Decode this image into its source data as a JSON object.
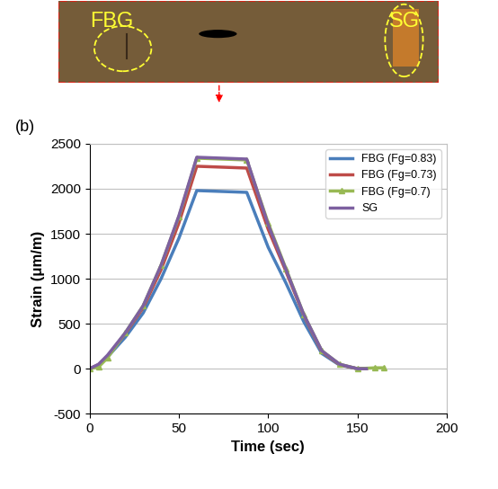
{
  "photo": {
    "labels": [
      "FBG",
      "SG"
    ]
  },
  "chart_data": {
    "type": "line",
    "panel_label": "(b)",
    "x_label": "Time (sec)",
    "y_label": "Strain (μm/m)",
    "xlim": [
      0,
      200
    ],
    "xticks": [
      0,
      50,
      100,
      150,
      200
    ],
    "ylim": [
      -500,
      2500
    ],
    "yticks": [
      -500,
      0,
      500,
      1000,
      1500,
      2000,
      2500
    ],
    "grid": true,
    "legend": "upper right",
    "series": [
      {
        "name": "FBG (Fg=0.83)",
        "color": "#4a7ebb",
        "line_style": "solid",
        "x": [
          0,
          5,
          10,
          20,
          30,
          40,
          50,
          60,
          88,
          100,
          110,
          120,
          130,
          140,
          150,
          155
        ],
        "values": [
          0,
          40,
          130,
          350,
          620,
          1000,
          1450,
          1980,
          1960,
          1350,
          950,
          520,
          170,
          40,
          0,
          0
        ]
      },
      {
        "name": "FBG (Fg=0.73)",
        "color": "#be4b48",
        "line_style": "solid",
        "x": [
          0,
          5,
          10,
          20,
          30,
          40,
          50,
          60,
          88,
          100,
          110,
          120,
          130,
          140,
          150,
          155
        ],
        "values": [
          0,
          45,
          140,
          390,
          680,
          1100,
          1620,
          2250,
          2230,
          1550,
          1080,
          590,
          190,
          45,
          0,
          0
        ]
      },
      {
        "name": "FBG (Fg=0.7)",
        "color": "#98b954",
        "line_style": "solid",
        "marker": "triangle",
        "x": [
          0,
          5,
          10,
          20,
          30,
          40,
          50,
          60,
          88,
          100,
          110,
          120,
          130,
          140,
          150,
          160,
          165
        ],
        "values": [
          0,
          20,
          120,
          400,
          700,
          1150,
          1690,
          2340,
          2320,
          1620,
          1110,
          600,
          200,
          50,
          0,
          10,
          10
        ]
      },
      {
        "name": "SG",
        "color": "#7d60a0",
        "line_style": "solid",
        "x": [
          0,
          5,
          10,
          20,
          30,
          40,
          50,
          60,
          88,
          100,
          110,
          120,
          130,
          140,
          150,
          155
        ],
        "values": [
          0,
          50,
          150,
          400,
          700,
          1150,
          1700,
          2350,
          2330,
          1600,
          1100,
          600,
          200,
          50,
          0,
          0
        ]
      }
    ]
  }
}
